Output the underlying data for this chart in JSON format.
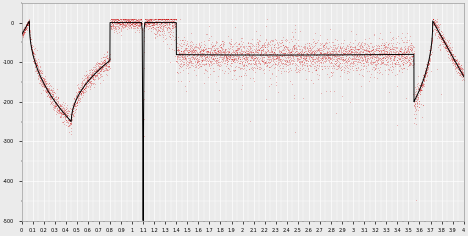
{
  "xlim": [
    0,
    4.0
  ],
  "ylim": [
    -500,
    50
  ],
  "background_color": "#ebebeb",
  "grid_color": "#ffffff",
  "line_color": "#000000",
  "scatter_color": "#cc0000",
  "f0": 0.07,
  "fa": 3.72,
  "fn": 1.1,
  "n_points": 6000,
  "noise_seed": 42
}
